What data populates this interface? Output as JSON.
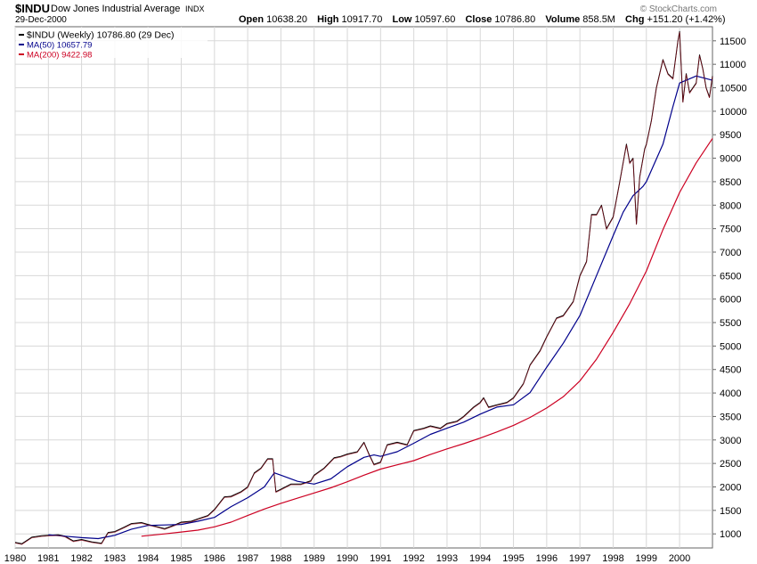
{
  "header": {
    "ticker": "$INDU",
    "name": "Dow Jones Industrial Average",
    "exchange": "INDX",
    "date": "29-Dec-2000",
    "brand": "© StockCharts.com",
    "open_label": "Open",
    "open": "10638.20",
    "high_label": "High",
    "high": "10917.70",
    "low_label": "Low",
    "low": "10597.60",
    "close_label": "Close",
    "close": "10786.80",
    "volume_label": "Volume",
    "volume": "858.5M",
    "chg_label": "Chg",
    "chg": "+151.20 (+1.42%)"
  },
  "chart_data": {
    "type": "line",
    "title": "Dow Jones Industrial Average",
    "xlabel": "",
    "ylabel": "",
    "ylim": [
      700,
      11800
    ],
    "xlim": [
      1980.0,
      2000.99
    ],
    "grid": true,
    "legend_position": "top-left",
    "colors": {
      "price": "#000000",
      "price_highlight": "#8b0a1a",
      "ma50": "#00008b",
      "ma200": "#cc0022",
      "grid": "#d8d8d8",
      "axis": "#666666"
    },
    "x_ticks": [
      "1980",
      "1981",
      "1982",
      "1983",
      "1984",
      "1985",
      "1986",
      "1987",
      "1988",
      "1989",
      "1990",
      "1991",
      "1992",
      "1993",
      "1994",
      "1995",
      "1996",
      "1997",
      "1998",
      "1999",
      "2000"
    ],
    "y_ticks": [
      1000,
      1500,
      2000,
      2500,
      3000,
      3500,
      4000,
      4500,
      5000,
      5500,
      6000,
      6500,
      7000,
      7500,
      8000,
      8500,
      9000,
      9500,
      10000,
      10500,
      11000,
      11500
    ],
    "series": [
      {
        "name": "$INDU",
        "legend": "$INDU (Weekly) 10786.80 (29 Dec)",
        "color": "#000000",
        "x": [
          1980.0,
          1980.2,
          1980.5,
          1980.8,
          1981.0,
          1981.3,
          1981.5,
          1981.75,
          1982.0,
          1982.3,
          1982.6,
          1982.8,
          1983.0,
          1983.3,
          1983.5,
          1983.8,
          1984.0,
          1984.3,
          1984.5,
          1984.8,
          1985.0,
          1985.3,
          1985.5,
          1985.8,
          1986.0,
          1986.3,
          1986.5,
          1986.8,
          1987.0,
          1987.2,
          1987.4,
          1987.6,
          1987.75,
          1987.85,
          1988.0,
          1988.3,
          1988.6,
          1988.9,
          1989.0,
          1989.3,
          1989.6,
          1989.8,
          1990.0,
          1990.3,
          1990.5,
          1990.65,
          1990.8,
          1991.0,
          1991.2,
          1991.5,
          1991.8,
          1992.0,
          1992.3,
          1992.5,
          1992.8,
          1993.0,
          1993.3,
          1993.5,
          1993.8,
          1994.0,
          1994.1,
          1994.25,
          1994.5,
          1994.8,
          1995.0,
          1995.3,
          1995.5,
          1995.8,
          1996.0,
          1996.3,
          1996.5,
          1996.8,
          1997.0,
          1997.2,
          1997.35,
          1997.5,
          1997.65,
          1997.8,
          1998.0,
          1998.2,
          1998.4,
          1998.5,
          1998.6,
          1998.7,
          1998.8,
          1998.95,
          1999.0,
          1999.15,
          1999.3,
          1999.5,
          1999.65,
          1999.8,
          1999.95,
          2000.0,
          2000.1,
          2000.2,
          2000.3,
          2000.4,
          2000.5,
          2000.6,
          2000.7,
          2000.8,
          2000.9,
          2000.99
        ],
        "values": [
          820,
          790,
          930,
          960,
          970,
          980,
          950,
          850,
          880,
          830,
          800,
          1030,
          1050,
          1150,
          1220,
          1240,
          1200,
          1150,
          1110,
          1190,
          1250,
          1270,
          1320,
          1390,
          1520,
          1790,
          1800,
          1900,
          2000,
          2300,
          2400,
          2600,
          2600,
          1900,
          1950,
          2060,
          2060,
          2130,
          2250,
          2400,
          2620,
          2650,
          2700,
          2750,
          2950,
          2700,
          2480,
          2530,
          2900,
          2950,
          2900,
          3200,
          3250,
          3300,
          3250,
          3350,
          3400,
          3500,
          3700,
          3800,
          3900,
          3700,
          3750,
          3800,
          3900,
          4200,
          4600,
          4900,
          5200,
          5600,
          5650,
          5950,
          6500,
          6800,
          7800,
          7800,
          8000,
          7500,
          7750,
          8500,
          9300,
          8900,
          9000,
          7600,
          8600,
          9200,
          9300,
          9800,
          10500,
          11100,
          10800,
          10700,
          11500,
          11700,
          10200,
          10800,
          10400,
          10500,
          10600,
          11200,
          10900,
          10500,
          10300,
          10750
        ]
      },
      {
        "name": "MA(50)",
        "legend": "MA(50) 10657.79",
        "color": "#00008b",
        "x": [
          1981.0,
          1981.5,
          1982.0,
          1982.5,
          1983.0,
          1983.5,
          1984.0,
          1984.5,
          1985.0,
          1985.5,
          1986.0,
          1986.5,
          1987.0,
          1987.5,
          1987.8,
          1988.0,
          1988.5,
          1989.0,
          1989.5,
          1990.0,
          1990.5,
          1990.8,
          1991.0,
          1991.5,
          1992.0,
          1992.5,
          1993.0,
          1993.5,
          1994.0,
          1994.5,
          1995.0,
          1995.5,
          1996.0,
          1996.5,
          1997.0,
          1997.5,
          1998.0,
          1998.3,
          1998.6,
          1998.9,
          1999.0,
          1999.5,
          1999.8,
          2000.0,
          2000.5,
          2000.99
        ],
        "values": [
          980,
          950,
          920,
          900,
          970,
          1100,
          1180,
          1190,
          1200,
          1270,
          1350,
          1580,
          1770,
          2000,
          2300,
          2250,
          2120,
          2060,
          2170,
          2430,
          2630,
          2680,
          2650,
          2750,
          2930,
          3120,
          3250,
          3380,
          3550,
          3700,
          3750,
          4010,
          4550,
          5060,
          5650,
          6500,
          7350,
          7850,
          8200,
          8400,
          8500,
          9300,
          10100,
          10600,
          10750,
          10660
        ]
      },
      {
        "name": "MA(200)",
        "legend": "MA(200) 9422.98",
        "color": "#cc0022",
        "x": [
          1983.8,
          1984.5,
          1985.0,
          1985.5,
          1986.0,
          1986.5,
          1987.0,
          1987.5,
          1988.0,
          1988.5,
          1989.0,
          1989.5,
          1990.0,
          1990.5,
          1991.0,
          1991.5,
          1992.0,
          1992.5,
          1993.0,
          1993.5,
          1994.0,
          1994.5,
          1995.0,
          1995.5,
          1996.0,
          1996.5,
          1997.0,
          1997.5,
          1998.0,
          1998.5,
          1999.0,
          1999.5,
          2000.0,
          2000.5,
          2000.99
        ],
        "values": [
          950,
          1000,
          1040,
          1080,
          1150,
          1250,
          1390,
          1530,
          1650,
          1760,
          1870,
          1980,
          2110,
          2250,
          2380,
          2470,
          2560,
          2690,
          2810,
          2920,
          3040,
          3170,
          3310,
          3480,
          3680,
          3920,
          4260,
          4720,
          5290,
          5900,
          6600,
          7480,
          8270,
          8900,
          9420
        ]
      }
    ]
  }
}
